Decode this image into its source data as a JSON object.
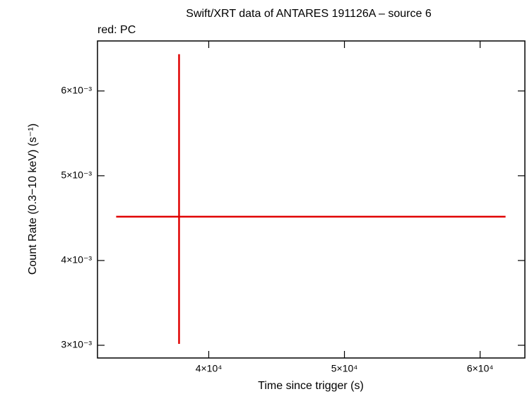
{
  "chart_data": {
    "type": "errorbar",
    "title": "Swift/XRT data of ANTARES 191126A – source 6",
    "subtitle": "red: PC",
    "x_label": "Time since trigger (s)",
    "y_label": "Count Rate (0.3−10 keV) (s⁻¹)",
    "xlim": [
      31800,
      63300
    ],
    "ylim": [
      0.00285,
      0.00659
    ],
    "xticks": [
      {
        "value": 40000,
        "label": "4×10⁴"
      },
      {
        "value": 50000,
        "label": "5×10⁴"
      },
      {
        "value": 60000,
        "label": "6×10⁴"
      }
    ],
    "yticks": [
      {
        "value": 0.003,
        "label": "3×10⁻³"
      },
      {
        "value": 0.004,
        "label": "4×10⁻³"
      },
      {
        "value": 0.005,
        "label": "5×10⁻³"
      },
      {
        "value": 0.006,
        "label": "6×10⁻³"
      }
    ],
    "series": [
      {
        "color": "#e00000",
        "x": [
          37812
        ],
        "values": [
          0.004517
        ],
        "xerr_minus": [
          4635
        ],
        "xerr_plus": [
          24063
        ],
        "yerr_minus": [
          0.0015
        ],
        "yerr_plus": [
          0.001917
        ]
      }
    ]
  }
}
